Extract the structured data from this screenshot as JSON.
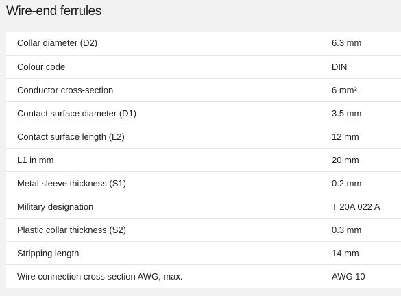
{
  "section": {
    "title": "Wire-end ferrules"
  },
  "rows": [
    {
      "label": "Collar diameter (D2)",
      "value": "6.3  mm"
    },
    {
      "label": "Colour code",
      "value": "DIN"
    },
    {
      "label": "Conductor cross-section",
      "value": "6  mm²"
    },
    {
      "label": "Contact surface diameter (D1)",
      "value": "3.5  mm"
    },
    {
      "label": "Contact surface length (L2)",
      "value": "12  mm"
    },
    {
      "label": "L1 in mm",
      "value": "20  mm"
    },
    {
      "label": "Metal sleeve thickness (S1)",
      "value": "0.2  mm"
    },
    {
      "label": "Military designation",
      "value": "T 20A 022 A"
    },
    {
      "label": "Plastic collar thickness (S2)",
      "value": "0.3  mm"
    },
    {
      "label": "Stripping length",
      "value": "14  mm"
    },
    {
      "label": "Wire connection cross section AWG, max.",
      "value": "AWG 10"
    }
  ]
}
